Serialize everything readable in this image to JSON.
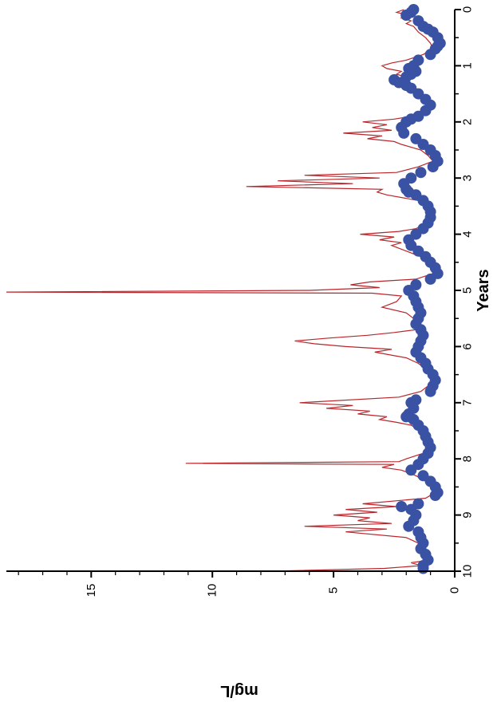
{
  "chart_data": {
    "type": "line",
    "orientation": "rotated 90 degrees clockwise (years run top to bottom along right edge, mg/L increases to the left)",
    "title": "",
    "xlabel": "Years",
    "ylabel": "mg/L",
    "xlim": [
      0,
      10
    ],
    "ylim": [
      0,
      18.5
    ],
    "x_ticks": [
      "0",
      "1",
      "2",
      "3",
      "4",
      "5",
      "6",
      "7",
      "8",
      "9",
      "10"
    ],
    "y_ticks": [
      "0",
      "5",
      "10",
      "15"
    ],
    "grid": false,
    "colors": {
      "line": "#b8262b",
      "points": "#3a52a3",
      "axis": "#000000"
    },
    "series": [
      {
        "style": "line",
        "x": [
          0.0,
          0.05,
          0.1,
          0.15,
          0.2,
          0.25,
          0.3,
          0.35,
          0.4,
          0.5,
          0.6,
          0.7,
          0.8,
          0.9,
          0.95,
          1.0,
          1.05,
          1.1,
          1.15,
          1.2,
          1.25,
          1.3,
          1.35,
          1.4,
          1.5,
          1.6,
          1.7,
          1.8,
          1.9,
          1.95,
          2.0,
          2.05,
          2.1,
          2.15,
          2.2,
          2.25,
          2.3,
          2.35,
          2.4,
          2.5,
          2.6,
          2.7,
          2.8,
          2.9,
          2.95,
          3.0,
          3.05,
          3.1,
          3.15,
          3.2,
          3.25,
          3.3,
          3.4,
          3.5,
          3.6,
          3.7,
          3.8,
          3.9,
          3.95,
          4.0,
          4.05,
          4.1,
          4.15,
          4.2,
          4.3,
          4.4,
          4.5,
          4.6,
          4.7,
          4.8,
          4.85,
          4.9,
          4.95,
          5.0,
          5.03,
          5.05,
          5.1,
          5.2,
          5.3,
          5.4,
          5.5,
          5.6,
          5.7,
          5.75,
          5.8,
          5.85,
          5.9,
          5.95,
          6.0,
          6.05,
          6.1,
          6.2,
          6.3,
          6.4,
          6.5,
          6.6,
          6.7,
          6.8,
          6.9,
          7.0,
          7.05,
          7.1,
          7.15,
          7.2,
          7.25,
          7.3,
          7.35,
          7.4,
          7.5,
          7.6,
          7.7,
          7.8,
          7.9,
          8.0,
          8.05,
          8.08,
          8.1,
          8.15,
          8.2,
          8.3,
          8.4,
          8.5,
          8.6,
          8.7,
          8.8,
          8.85,
          8.9,
          8.95,
          9.0,
          9.05,
          9.1,
          9.15,
          9.2,
          9.25,
          9.3,
          9.4,
          9.5,
          9.6,
          9.7,
          9.75,
          9.8,
          9.85,
          9.9,
          9.95,
          10.0
        ],
        "y": [
          2.1,
          2.4,
          1.9,
          2.2,
          1.8,
          2.0,
          1.7,
          1.6,
          1.5,
          1.2,
          1.0,
          0.9,
          1.3,
          2.0,
          2.6,
          3.0,
          2.8,
          2.2,
          2.4,
          2.0,
          2.7,
          2.2,
          1.8,
          1.6,
          1.4,
          1.3,
          1.1,
          1.3,
          1.8,
          2.5,
          3.8,
          2.8,
          3.4,
          2.6,
          4.6,
          3.0,
          3.6,
          2.5,
          2.2,
          1.4,
          1.1,
          0.9,
          1.5,
          2.4,
          6.2,
          3.1,
          7.3,
          4.2,
          8.6,
          3.0,
          3.2,
          2.8,
          1.5,
          1.2,
          1.0,
          0.9,
          1.1,
          1.6,
          2.3,
          3.9,
          2.5,
          3.1,
          2.2,
          2.6,
          2.0,
          1.4,
          1.2,
          1.0,
          0.9,
          1.6,
          3.5,
          4.3,
          3.1,
          6.0,
          18.5,
          3.4,
          2.2,
          2.4,
          3.0,
          2.0,
          1.7,
          1.4,
          1.6,
          2.5,
          3.6,
          5.2,
          6.6,
          5.8,
          4.5,
          2.6,
          3.3,
          2.0,
          1.5,
          1.2,
          1.0,
          0.9,
          1.1,
          1.4,
          2.3,
          6.4,
          4.2,
          5.3,
          3.5,
          4.0,
          2.8,
          3.1,
          2.4,
          1.8,
          1.4,
          1.1,
          1.0,
          1.0,
          1.3,
          2.0,
          2.3,
          11.1,
          2.5,
          3.0,
          2.2,
          1.6,
          1.2,
          0.9,
          0.8,
          1.2,
          3.8,
          2.4,
          4.5,
          3.2,
          5.0,
          3.5,
          4.0,
          2.6,
          6.2,
          2.8,
          4.5,
          2.0,
          1.5,
          1.2,
          1.0,
          1.3,
          1.0,
          1.8,
          1.4,
          2.9,
          7.5
        ]
      },
      {
        "style": "points",
        "x": [
          0.0,
          0.05,
          0.1,
          0.2,
          0.3,
          0.35,
          0.4,
          0.5,
          0.6,
          0.65,
          0.7,
          0.8,
          0.9,
          1.0,
          1.05,
          1.1,
          1.15,
          1.2,
          1.25,
          1.3,
          1.35,
          1.4,
          1.5,
          1.6,
          1.7,
          1.8,
          1.9,
          1.95,
          2.0,
          2.1,
          2.2,
          2.3,
          2.4,
          2.5,
          2.6,
          2.7,
          2.8,
          2.9,
          3.0,
          3.1,
          3.2,
          3.25,
          3.3,
          3.4,
          3.5,
          3.6,
          3.7,
          3.8,
          3.9,
          4.0,
          4.1,
          4.2,
          4.3,
          4.4,
          4.5,
          4.6,
          4.7,
          4.8,
          4.9,
          5.0,
          5.1,
          5.2,
          5.3,
          5.4,
          5.5,
          5.6,
          5.7,
          5.8,
          5.9,
          6.0,
          6.1,
          6.2,
          6.3,
          6.4,
          6.5,
          6.6,
          6.7,
          6.8,
          6.95,
          7.0,
          7.1,
          7.2,
          7.25,
          7.3,
          7.4,
          7.5,
          7.6,
          7.7,
          7.8,
          7.9,
          8.0,
          8.1,
          8.2,
          8.3,
          8.4,
          8.5,
          8.6,
          8.65,
          8.8,
          8.85,
          8.9,
          9.0,
          9.1,
          9.2,
          9.3,
          9.4,
          9.5,
          9.6,
          9.7,
          9.8,
          9.9,
          9.95
        ],
        "y": [
          1.7,
          1.8,
          2.0,
          1.5,
          1.3,
          1.1,
          0.9,
          0.7,
          0.6,
          0.7,
          0.8,
          1.0,
          1.5,
          1.7,
          1.9,
          1.6,
          1.8,
          2.0,
          2.5,
          2.3,
          2.0,
          1.8,
          1.5,
          1.2,
          1.0,
          1.2,
          1.5,
          1.8,
          2.0,
          2.2,
          2.1,
          1.6,
          1.3,
          1.0,
          0.8,
          0.7,
          0.9,
          1.4,
          1.8,
          2.1,
          2.0,
          1.9,
          1.6,
          1.3,
          1.1,
          1.0,
          1.0,
          1.1,
          1.3,
          1.6,
          1.9,
          1.8,
          1.5,
          1.2,
          1.0,
          0.8,
          0.7,
          1.0,
          1.6,
          1.9,
          1.7,
          1.6,
          1.5,
          1.4,
          1.5,
          1.6,
          1.4,
          1.3,
          1.4,
          1.5,
          1.6,
          1.4,
          1.2,
          1.1,
          0.9,
          0.8,
          0.9,
          1.0,
          1.6,
          1.8,
          1.7,
          1.9,
          2.0,
          1.7,
          1.5,
          1.3,
          1.2,
          1.1,
          1.0,
          1.1,
          1.3,
          1.5,
          1.8,
          1.3,
          1.0,
          0.8,
          0.7,
          0.8,
          1.5,
          2.2,
          1.8,
          1.6,
          1.7,
          1.9,
          1.5,
          1.4,
          1.3,
          1.4,
          1.2,
          1.1,
          1.3,
          1.3
        ]
      }
    ]
  }
}
